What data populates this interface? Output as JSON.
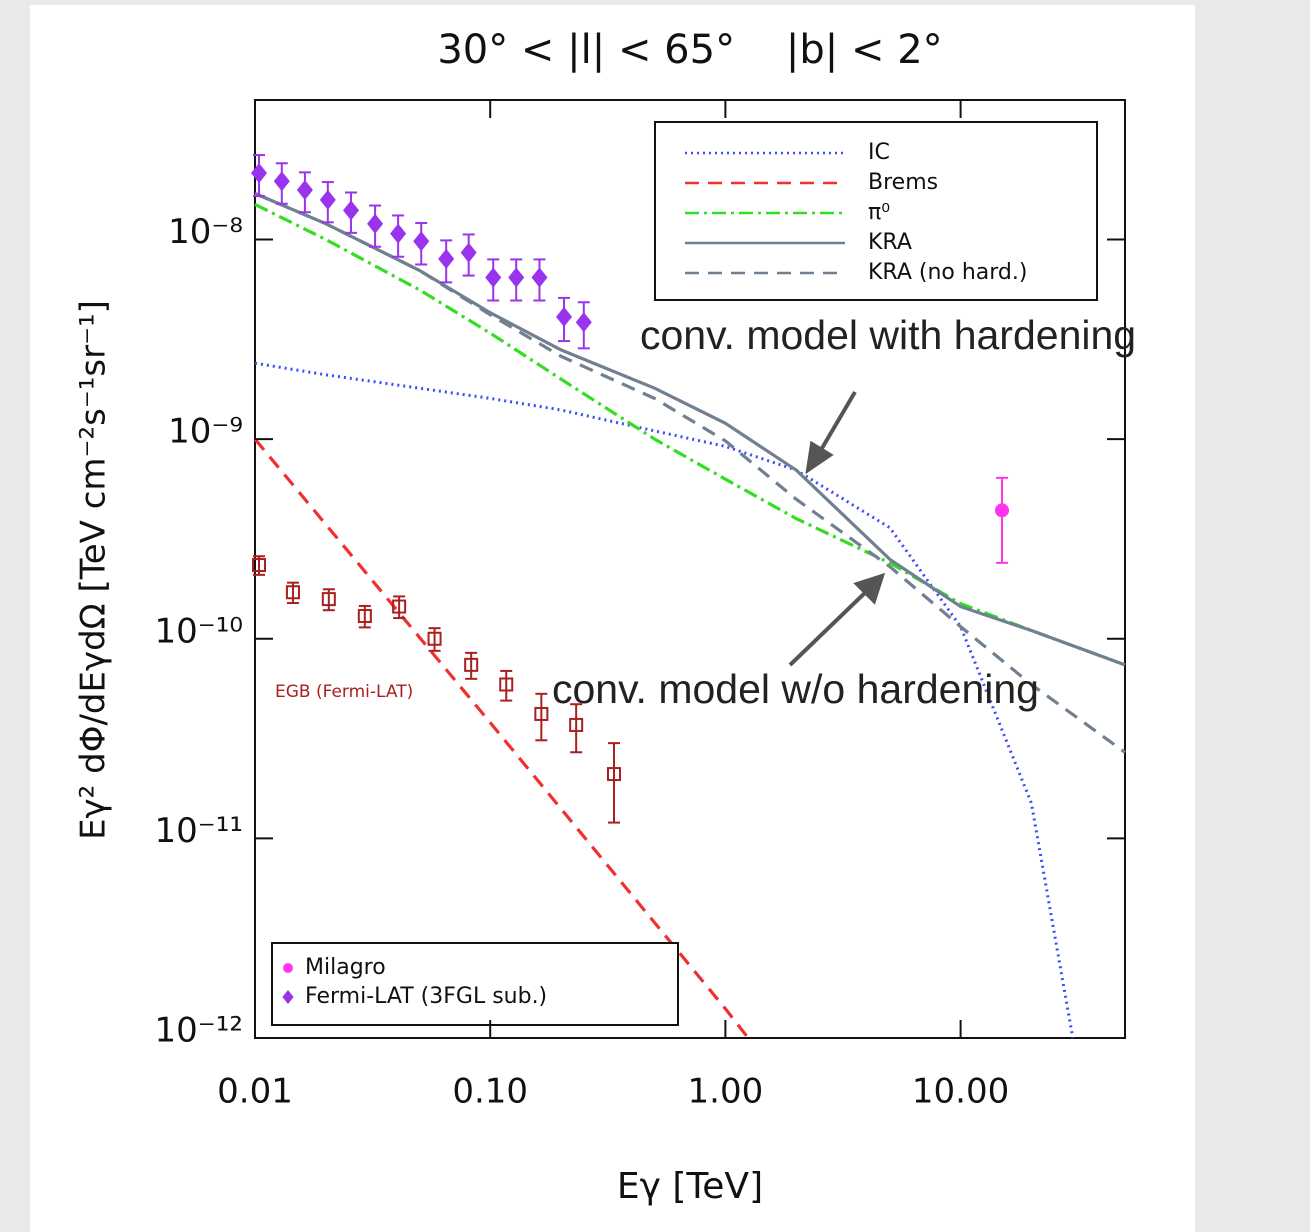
{
  "chart_data": {
    "type": "line",
    "title": "30° < |l| < 65°    |b| < 2°",
    "x_label": "Eγ [TeV]",
    "y_label": "Eγ² dΦ/dEγdΩ [TeV cm⁻²s⁻¹sr⁻¹]",
    "x_scale": "log",
    "y_scale": "log",
    "xlim": [
      0.01,
      50
    ],
    "ylim": [
      1e-12,
      5e-08
    ],
    "xticks": [
      {
        "value": 0.01,
        "label": "0.01"
      },
      {
        "value": 0.1,
        "label": "0.10"
      },
      {
        "value": 1,
        "label": "1.00"
      },
      {
        "value": 10,
        "label": "10.00"
      }
    ],
    "yticks": [
      {
        "value": 1e-12,
        "label": "10⁻¹²"
      },
      {
        "value": 1e-11,
        "label": "10⁻¹¹"
      },
      {
        "value": 1e-10,
        "label": "10⁻¹⁰"
      },
      {
        "value": 1e-09,
        "label": "10⁻⁹"
      },
      {
        "value": 1e-08,
        "label": "10⁻⁸"
      }
    ],
    "series": [
      {
        "name": "IC",
        "type": "line",
        "style": "dotted",
        "color": "#3a4cf5",
        "legend": "upper right",
        "x": [
          0.01,
          0.02,
          0.05,
          0.1,
          0.2,
          0.5,
          1,
          2,
          5,
          10,
          20,
          30
        ],
        "values": [
          2.4e-09,
          2.1e-09,
          1.8e-09,
          1.6e-09,
          1.4e-09,
          1.1e-09,
          9.2e-10,
          7e-10,
          3.6e-10,
          1.15e-10,
          1.5e-11,
          1e-12
        ]
      },
      {
        "name": "Brems",
        "type": "line",
        "style": "dashed",
        "color": "#f03030",
        "legend": "upper right",
        "x": [
          0.01,
          0.1,
          1,
          1.25
        ],
        "values": [
          1e-09,
          3.8e-11,
          1.4e-12,
          1e-12
        ]
      },
      {
        "name": "π⁰",
        "type": "line",
        "style": "dashdot",
        "color": "#33dd22",
        "legend": "upper right",
        "x": [
          0.01,
          0.02,
          0.05,
          0.1,
          0.2,
          0.5,
          1,
          2,
          5,
          10,
          20,
          50
        ],
        "values": [
          1.5e-08,
          1e-08,
          5.6e-09,
          3.4e-09,
          2e-09,
          1e-09,
          6.3e-10,
          4e-10,
          2.4e-10,
          1.5e-10,
          1.1e-10,
          7.4e-11
        ]
      },
      {
        "name": "KRA",
        "type": "line",
        "style": "solid",
        "color": "#708090",
        "legend": "upper right",
        "x": [
          0.01,
          0.02,
          0.05,
          0.1,
          0.2,
          0.5,
          1,
          2,
          5,
          10,
          20,
          50
        ],
        "values": [
          1.7e-08,
          1.2e-08,
          7e-09,
          4.3e-09,
          2.8e-09,
          1.8e-09,
          1.2e-09,
          7e-10,
          2.5e-10,
          1.45e-10,
          1.1e-10,
          7.4e-11
        ]
      },
      {
        "name": "KRA (no hard.)",
        "type": "line",
        "style": "dashed",
        "color": "#708090",
        "legend": "upper right",
        "x": [
          0.01,
          0.02,
          0.05,
          0.1,
          0.2,
          0.5,
          1,
          2,
          5,
          10,
          20,
          50
        ],
        "values": [
          1.7e-08,
          1.2e-08,
          7e-09,
          4.2e-09,
          2.6e-09,
          1.6e-09,
          9.8e-10,
          5e-10,
          2.3e-10,
          1.15e-10,
          5.9e-11,
          2.7e-11
        ]
      },
      {
        "name": "Milagro",
        "type": "scatter",
        "marker": "circle",
        "color": "#ff33ee",
        "legend": "lower left",
        "x": [
          15
        ],
        "values": [
          4.4e-10
        ],
        "errors": [
          2e-10
        ]
      },
      {
        "name": "Fermi-LAT (3FGL sub.)",
        "type": "scatter",
        "marker": "diamond",
        "color": "#9933ee",
        "legend": "lower left",
        "x": [
          0.0104,
          0.013,
          0.0163,
          0.0204,
          0.0256,
          0.0324,
          0.0406,
          0.0509,
          0.065,
          0.081,
          0.103,
          0.129,
          0.162,
          0.206,
          0.25
        ],
        "values": [
          2.15e-08,
          1.96e-08,
          1.77e-08,
          1.58e-08,
          1.4e-08,
          1.2e-08,
          1.07e-08,
          9.8e-09,
          8e-09,
          8.6e-09,
          6.45e-09,
          6.45e-09,
          6.45e-09,
          4.1e-09,
          3.85e-09
        ],
        "errors": [
          5e-09,
          4.5e-09,
          4e-09,
          3.6e-09,
          3.2e-09,
          2.8e-09,
          2.5e-09,
          2.3e-09,
          1.9e-09,
          2e-09,
          1.5e-09,
          1.5e-09,
          1.5e-09,
          1e-09,
          1e-09
        ]
      },
      {
        "name": "EGB (Fermi-LAT)",
        "type": "scatter",
        "marker": "square",
        "color": "#a82020",
        "x": [
          0.0104,
          0.0145,
          0.0206,
          0.0293,
          0.041,
          0.058,
          0.083,
          0.117,
          0.165,
          0.232,
          0.336
        ],
        "values": [
          2.34e-10,
          1.71e-10,
          1.58e-10,
          1.3e-10,
          1.45e-10,
          1e-10,
          7.4e-11,
          5.9e-11,
          4.2e-11,
          3.7e-11,
          2.1e-11
        ],
        "errors": [
          2.5e-11,
          2e-11,
          1.9e-11,
          1.6e-11,
          1.8e-11,
          1.3e-11,
          1.1e-11,
          1e-11,
          1.1e-11,
          1e-11,
          9e-12
        ]
      }
    ],
    "annotations": [
      "conv. model with hardening",
      "conv. model w/o hardening"
    ]
  }
}
